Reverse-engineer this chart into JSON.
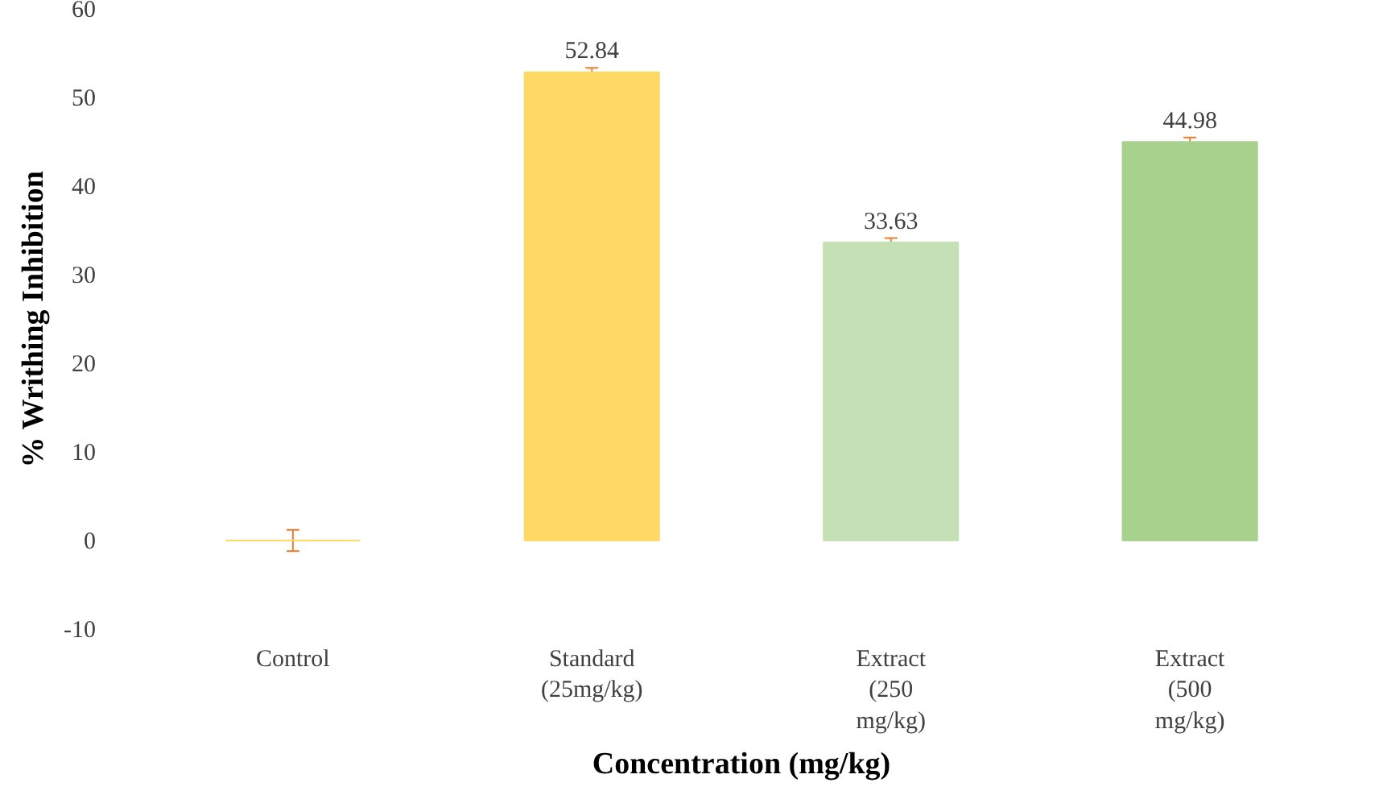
{
  "chart_data": {
    "type": "bar",
    "xlabel": "Concentration (mg/kg)",
    "ylabel": "% Writhing Inhibition",
    "categories": [
      "Control",
      "Standard (25mg/kg)",
      "Extract (250 mg/kg)",
      "Extract (500 mg/kg)"
    ],
    "values": [
      0,
      52.84,
      33.63,
      44.98
    ],
    "colors": [
      "#ffd966",
      "#ffd966",
      "#c5e0b4",
      "#a9d18e"
    ],
    "errors": [
      1.2,
      0.5,
      0.5,
      0.5
    ],
    "value_labels": [
      null,
      "52.84",
      "33.63",
      "44.98"
    ],
    "ylim": [
      -10,
      60
    ],
    "yticks": [
      -10,
      0,
      10,
      20,
      30,
      40,
      50,
      60
    ],
    "grid": false
  }
}
